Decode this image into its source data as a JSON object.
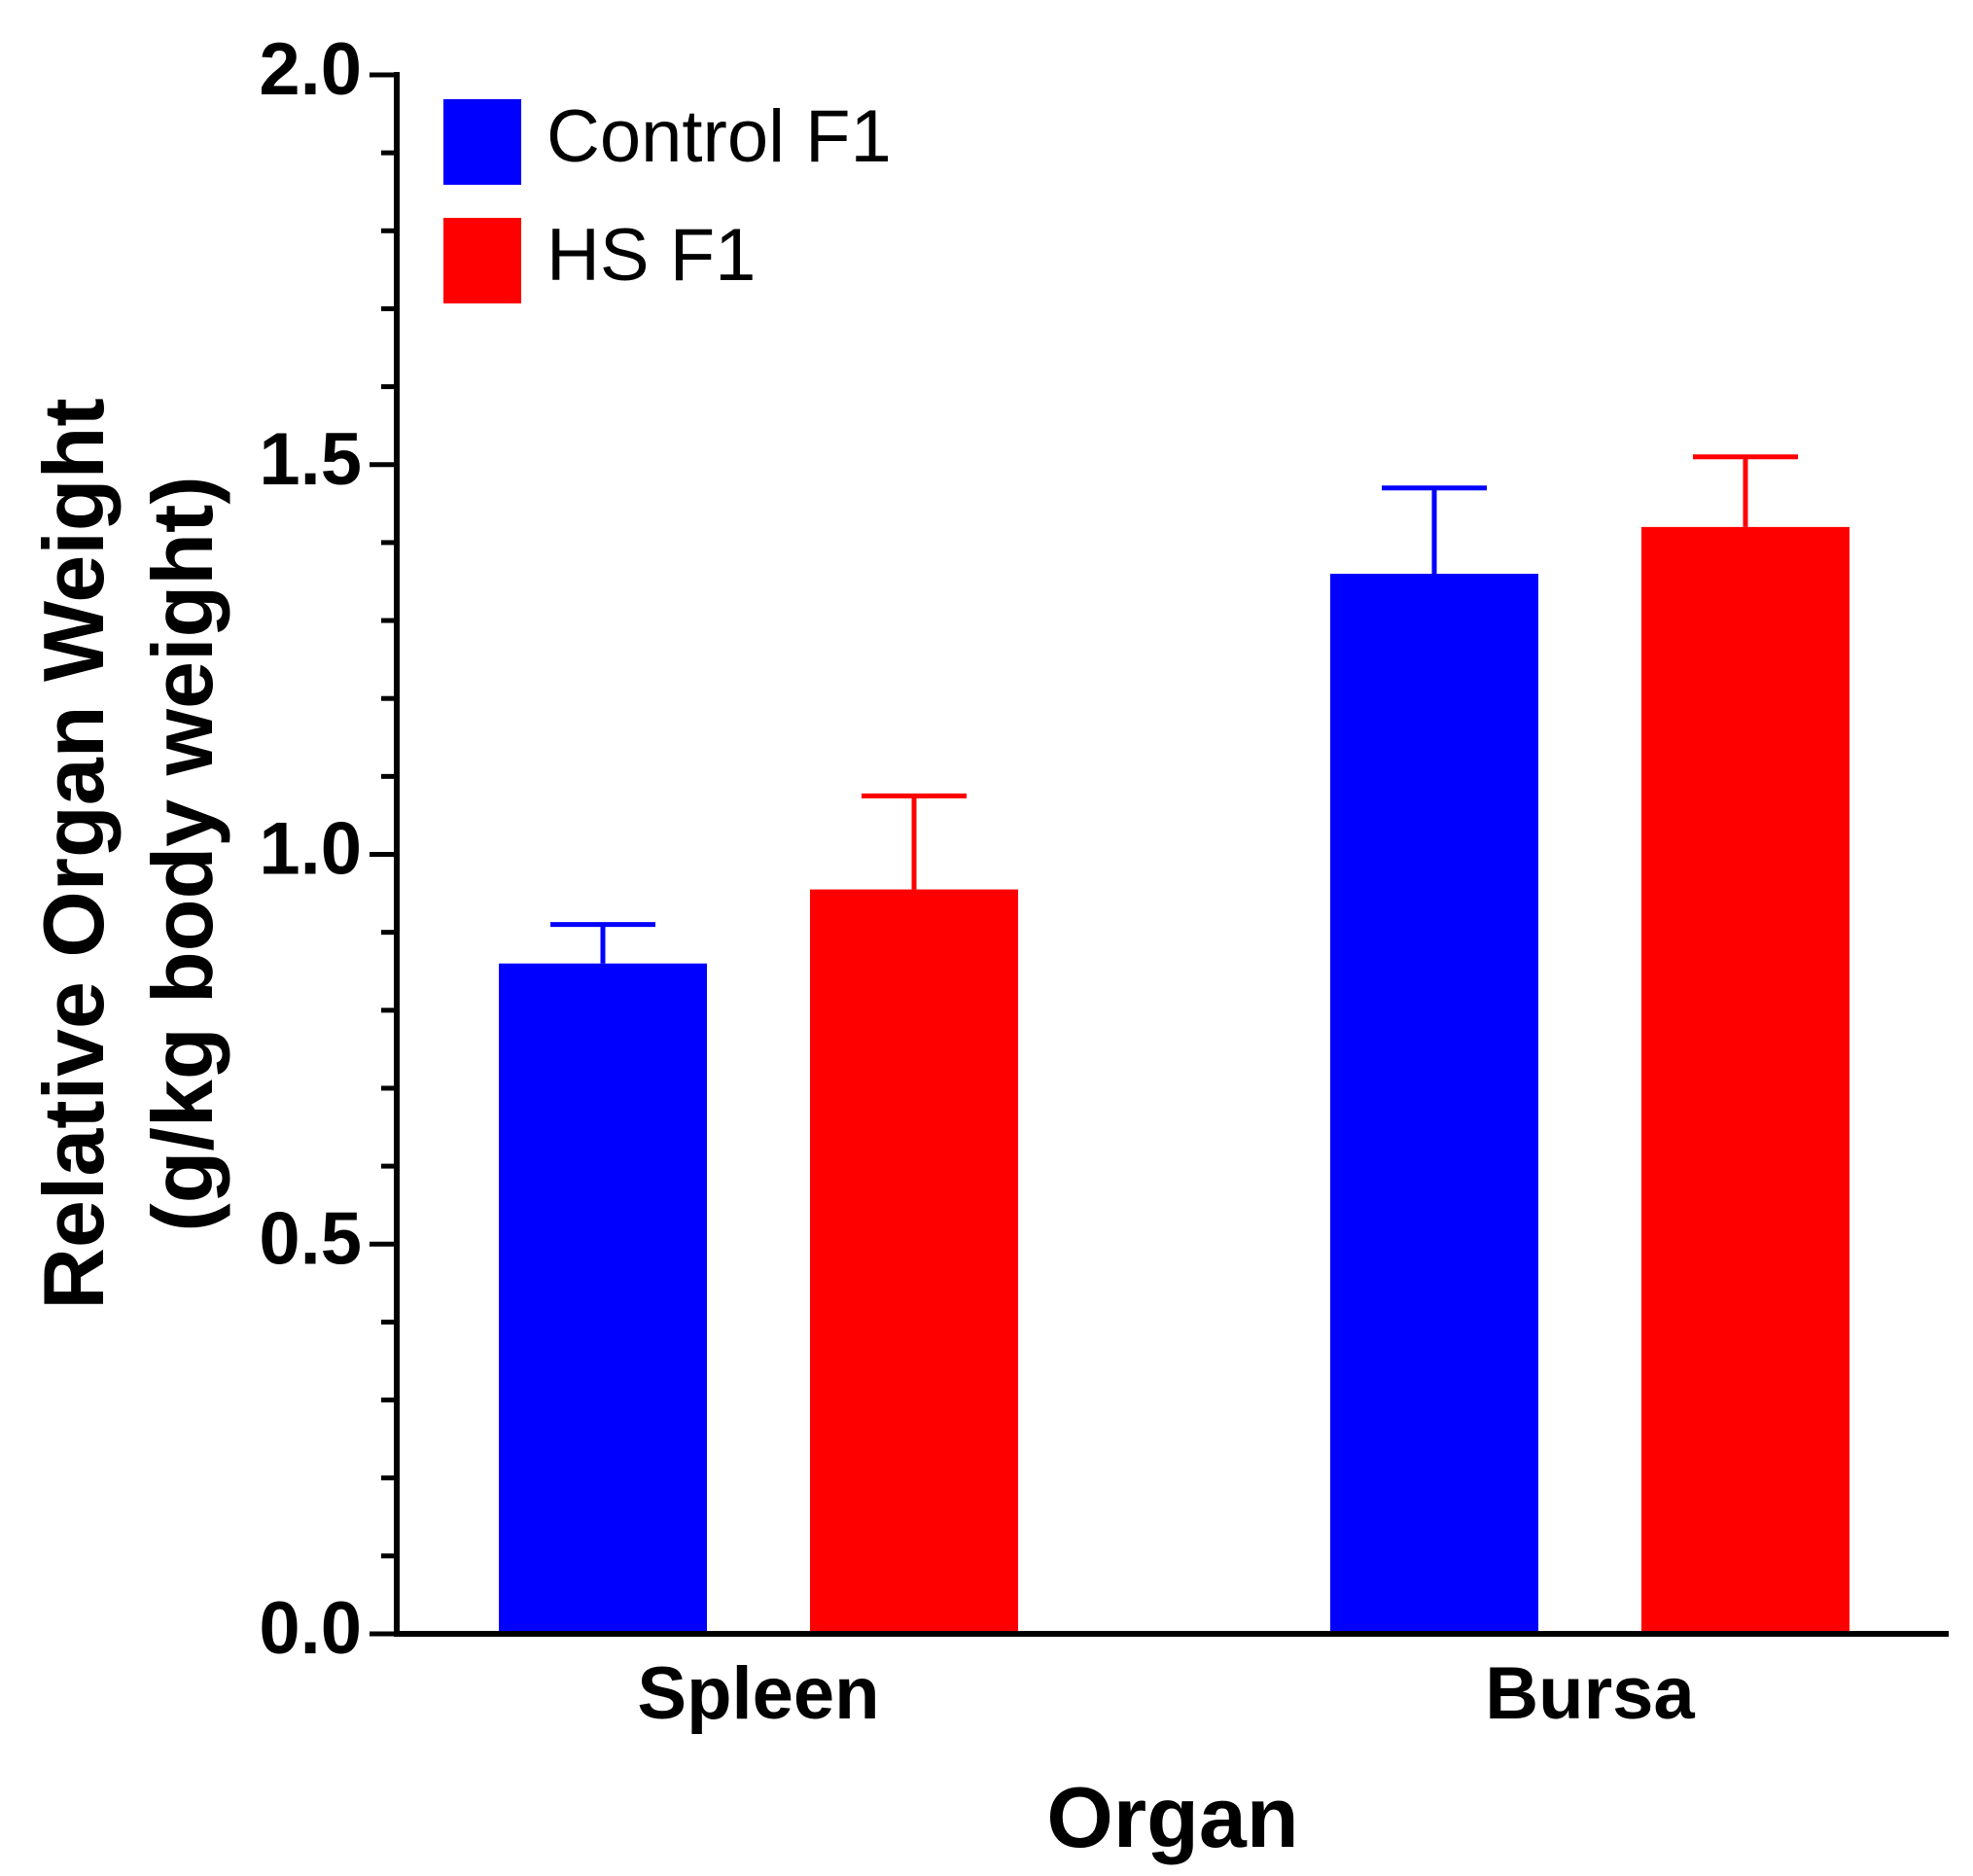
{
  "chart_data": {
    "type": "bar",
    "title": "",
    "xlabel": "Organ",
    "ylabel_line1": "Relative Organ Weight",
    "ylabel_line2": "(g/kg body weight)",
    "categories": [
      "Spleen",
      "Bursa"
    ],
    "ylim": [
      0,
      2.0
    ],
    "yticks": [
      "0.0",
      "0.5",
      "1.0",
      "1.5",
      "2.0"
    ],
    "series": [
      {
        "name": "Control F1",
        "color": "#0000FF",
        "values": [
          0.86,
          1.36
        ],
        "errors": [
          0.05,
          0.11
        ]
      },
      {
        "name": "HS F1",
        "color": "#FF0000",
        "values": [
          0.955,
          1.42
        ],
        "errors": [
          0.12,
          0.09
        ]
      }
    ],
    "legend": "top-left",
    "grid": false,
    "error_bars": "upper"
  }
}
